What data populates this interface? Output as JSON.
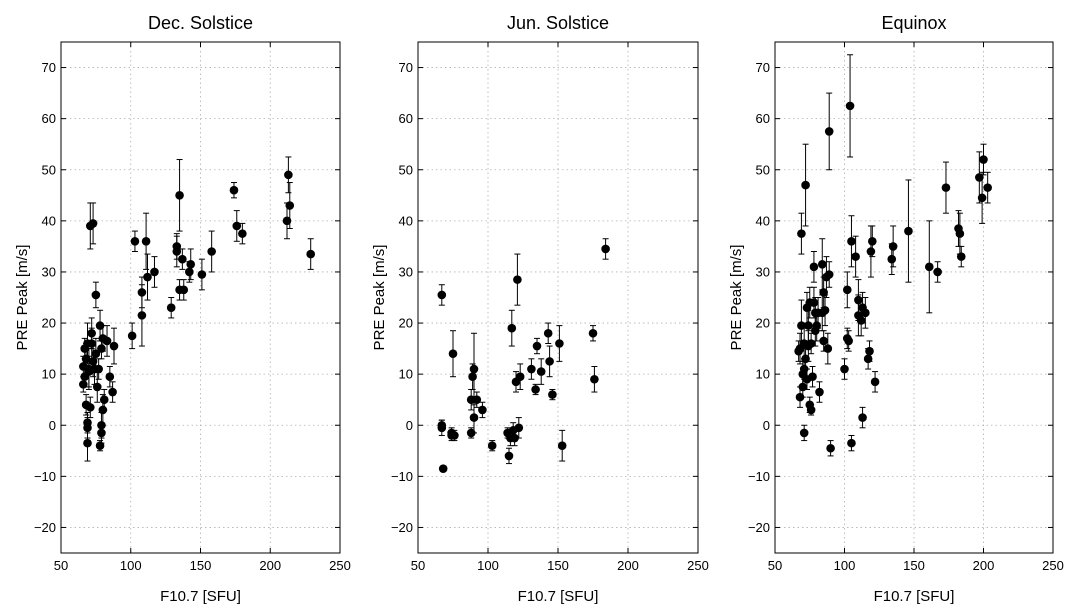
{
  "chart_data": [
    {
      "type": "scatter",
      "title": "Dec. Solstice",
      "xlabel": "F10.7 [SFU]",
      "ylabel": "PRE Peak [m/s]",
      "xlim": [
        50,
        250
      ],
      "ylim": [
        -25,
        75
      ],
      "xticks": [
        50,
        100,
        150,
        200,
        250
      ],
      "yticks": [
        -20,
        -10,
        0,
        10,
        20,
        30,
        40,
        50,
        60,
        70
      ],
      "grid": true,
      "points": [
        {
          "x": 66,
          "y": 8,
          "err": 1.5
        },
        {
          "x": 66,
          "y": 11.5,
          "err": 2
        },
        {
          "x": 67,
          "y": 9.5,
          "err": 2
        },
        {
          "x": 67,
          "y": 15,
          "err": 2
        },
        {
          "x": 68,
          "y": 13,
          "err": 3
        },
        {
          "x": 68,
          "y": 4,
          "err": 2
        },
        {
          "x": 69,
          "y": -0.5,
          "err": 2
        },
        {
          "x": 69,
          "y": 0.5,
          "err": 2
        },
        {
          "x": 69,
          "y": -3.5,
          "err": 3.5
        },
        {
          "x": 69,
          "y": 16,
          "err": 4
        },
        {
          "x": 70,
          "y": 10.5,
          "err": 3
        },
        {
          "x": 70,
          "y": 11,
          "err": 4
        },
        {
          "x": 71,
          "y": 39,
          "err": 4.5
        },
        {
          "x": 71,
          "y": 3.5,
          "err": 2
        },
        {
          "x": 72,
          "y": 18,
          "err": 3
        },
        {
          "x": 72,
          "y": 16,
          "err": 3
        },
        {
          "x": 73,
          "y": 39.5,
          "err": 4
        },
        {
          "x": 73,
          "y": 12.5,
          "err": 3
        },
        {
          "x": 74,
          "y": 11,
          "err": 3
        },
        {
          "x": 75,
          "y": 14,
          "err": 3
        },
        {
          "x": 75,
          "y": 25.5,
          "err": 2.5
        },
        {
          "x": 76,
          "y": 7.5,
          "err": 3
        },
        {
          "x": 77,
          "y": 11,
          "err": 2
        },
        {
          "x": 78,
          "y": -4,
          "err": 1
        },
        {
          "x": 78,
          "y": 19.5,
          "err": 3
        },
        {
          "x": 79,
          "y": -1.5,
          "err": 2
        },
        {
          "x": 79,
          "y": 15,
          "err": 2
        },
        {
          "x": 79,
          "y": 0,
          "err": 2.5
        },
        {
          "x": 80,
          "y": 17,
          "err": 2.5
        },
        {
          "x": 80,
          "y": 3,
          "err": 3
        },
        {
          "x": 81,
          "y": 5,
          "err": 2
        },
        {
          "x": 83,
          "y": 16.5,
          "err": 3
        },
        {
          "x": 85,
          "y": 9.5,
          "err": 2
        },
        {
          "x": 87,
          "y": 6.5,
          "err": 2
        },
        {
          "x": 88,
          "y": 15.5,
          "err": 3.5
        },
        {
          "x": 101,
          "y": 17.5,
          "err": 2.5
        },
        {
          "x": 103,
          "y": 36,
          "err": 2
        },
        {
          "x": 108,
          "y": 26,
          "err": 3
        },
        {
          "x": 108,
          "y": 21.5,
          "err": 6
        },
        {
          "x": 111,
          "y": 36,
          "err": 5.5
        },
        {
          "x": 112,
          "y": 29,
          "err": 4.5
        },
        {
          "x": 117,
          "y": 30,
          "err": 3
        },
        {
          "x": 129,
          "y": 23,
          "err": 2
        },
        {
          "x": 133,
          "y": 35,
          "err": 2.5
        },
        {
          "x": 133,
          "y": 34,
          "err": 3
        },
        {
          "x": 135,
          "y": 45,
          "err": 7
        },
        {
          "x": 135,
          "y": 26.5,
          "err": 2
        },
        {
          "x": 137,
          "y": 32.5,
          "err": 2
        },
        {
          "x": 138,
          "y": 26.5,
          "err": 2
        },
        {
          "x": 142,
          "y": 30,
          "err": 2
        },
        {
          "x": 143,
          "y": 31.5,
          "err": 3
        },
        {
          "x": 151,
          "y": 29.5,
          "err": 3
        },
        {
          "x": 158,
          "y": 34,
          "err": 4
        },
        {
          "x": 174,
          "y": 46,
          "err": 1.5
        },
        {
          "x": 176,
          "y": 39,
          "err": 3
        },
        {
          "x": 180,
          "y": 37.5,
          "err": 2
        },
        {
          "x": 212,
          "y": 40,
          "err": 3.5
        },
        {
          "x": 213,
          "y": 49,
          "err": 3.5
        },
        {
          "x": 214,
          "y": 43,
          "err": 4.5
        },
        {
          "x": 229,
          "y": 33.5,
          "err": 3
        }
      ]
    },
    {
      "type": "scatter",
      "title": "Jun. Solstice",
      "xlabel": "F10.7 [SFU]",
      "ylabel": "PRE Peak [m/s]",
      "xlim": [
        50,
        250
      ],
      "ylim": [
        -25,
        75
      ],
      "xticks": [
        50,
        100,
        150,
        200,
        250
      ],
      "yticks": [
        -20,
        -10,
        0,
        10,
        20,
        30,
        40,
        50,
        60,
        70
      ],
      "grid": true,
      "points": [
        {
          "x": 67,
          "y": 25.5,
          "err": 2
        },
        {
          "x": 67,
          "y": -0.5,
          "err": 1.5
        },
        {
          "x": 67,
          "y": 0,
          "err": 1
        },
        {
          "x": 68,
          "y": -8.5,
          "err": 0.5
        },
        {
          "x": 74,
          "y": -1.5,
          "err": 1
        },
        {
          "x": 74,
          "y": -2,
          "err": 1
        },
        {
          "x": 75,
          "y": 14,
          "err": 4.5
        },
        {
          "x": 76,
          "y": -2,
          "err": 1
        },
        {
          "x": 88,
          "y": 5,
          "err": 2
        },
        {
          "x": 88,
          "y": -1.5,
          "err": 1
        },
        {
          "x": 89,
          "y": 9.5,
          "err": 2.5
        },
        {
          "x": 90,
          "y": 11,
          "err": 7
        },
        {
          "x": 90,
          "y": 1.5,
          "err": 3
        },
        {
          "x": 92,
          "y": 5,
          "err": 1.5
        },
        {
          "x": 96,
          "y": 3,
          "err": 1.5
        },
        {
          "x": 103,
          "y": -4,
          "err": 1
        },
        {
          "x": 114,
          "y": -1.5,
          "err": 1
        },
        {
          "x": 115,
          "y": -6,
          "err": 1.5
        },
        {
          "x": 116,
          "y": -2.5,
          "err": 1.5
        },
        {
          "x": 117,
          "y": 19,
          "err": 3.5
        },
        {
          "x": 118,
          "y": -1,
          "err": 1.5
        },
        {
          "x": 119,
          "y": -2.5,
          "err": 1.5
        },
        {
          "x": 120,
          "y": 8.5,
          "err": 2
        },
        {
          "x": 121,
          "y": 28.5,
          "err": 5
        },
        {
          "x": 122,
          "y": -0.5,
          "err": 2
        },
        {
          "x": 123,
          "y": 9.5,
          "err": 2.5
        },
        {
          "x": 131,
          "y": 11,
          "err": 2
        },
        {
          "x": 134,
          "y": 7,
          "err": 1
        },
        {
          "x": 135,
          "y": 15.5,
          "err": 1.5
        },
        {
          "x": 138,
          "y": 10.5,
          "err": 2.5
        },
        {
          "x": 143,
          "y": 18,
          "err": 2
        },
        {
          "x": 144,
          "y": 12.5,
          "err": 3
        },
        {
          "x": 146,
          "y": 6,
          "err": 1
        },
        {
          "x": 151,
          "y": 16,
          "err": 3.5
        },
        {
          "x": 153,
          "y": -4,
          "err": 3
        },
        {
          "x": 175,
          "y": 18,
          "err": 1.5
        },
        {
          "x": 176,
          "y": 9,
          "err": 2.5
        },
        {
          "x": 184,
          "y": 34.5,
          "err": 2
        }
      ]
    },
    {
      "type": "scatter",
      "title": "Equinox",
      "xlabel": "F10.7 [SFU]",
      "ylabel": "PRE Peak [m/s]",
      "xlim": [
        50,
        250
      ],
      "ylim": [
        -25,
        75
      ],
      "xticks": [
        50,
        100,
        150,
        200,
        250
      ],
      "yticks": [
        -20,
        -10,
        0,
        10,
        20,
        30,
        40,
        50,
        60,
        70
      ],
      "grid": true,
      "points": [
        {
          "x": 67,
          "y": 14.5,
          "err": 2
        },
        {
          "x": 68,
          "y": 15,
          "err": 3
        },
        {
          "x": 68,
          "y": 5.5,
          "err": 2
        },
        {
          "x": 69,
          "y": 19.5,
          "err": 5
        },
        {
          "x": 69,
          "y": 37.5,
          "err": 4
        },
        {
          "x": 70,
          "y": 7.5,
          "err": 2
        },
        {
          "x": 70,
          "y": 10,
          "err": 2.5
        },
        {
          "x": 71,
          "y": 16,
          "err": 3
        },
        {
          "x": 71,
          "y": 11,
          "err": 2
        },
        {
          "x": 71,
          "y": -1.5,
          "err": 1.5
        },
        {
          "x": 72,
          "y": 47,
          "err": 8
        },
        {
          "x": 72,
          "y": 13,
          "err": 2
        },
        {
          "x": 73,
          "y": 9,
          "err": 2
        },
        {
          "x": 73,
          "y": 23,
          "err": 3
        },
        {
          "x": 74,
          "y": 15.5,
          "err": 3
        },
        {
          "x": 74,
          "y": 19.5,
          "err": 3
        },
        {
          "x": 75,
          "y": 4,
          "err": 1.5
        },
        {
          "x": 75,
          "y": 24,
          "err": 3
        },
        {
          "x": 76,
          "y": 16,
          "err": 2
        },
        {
          "x": 76,
          "y": 3,
          "err": 1
        },
        {
          "x": 77,
          "y": 9.5,
          "err": 2
        },
        {
          "x": 78,
          "y": 31,
          "err": 3
        },
        {
          "x": 78,
          "y": 24,
          "err": 3
        },
        {
          "x": 79,
          "y": 22,
          "err": 3
        },
        {
          "x": 79,
          "y": 18.5,
          "err": 3
        },
        {
          "x": 80,
          "y": 19.5,
          "err": 3
        },
        {
          "x": 81,
          "y": 22,
          "err": 3
        },
        {
          "x": 82,
          "y": 6.5,
          "err": 2
        },
        {
          "x": 84,
          "y": 31.5,
          "err": 5
        },
        {
          "x": 84,
          "y": 22,
          "err": 3.5
        },
        {
          "x": 85,
          "y": 26,
          "err": 3
        },
        {
          "x": 85,
          "y": 16.5,
          "err": 2
        },
        {
          "x": 86,
          "y": 22.5,
          "err": 3
        },
        {
          "x": 87,
          "y": 29,
          "err": 4
        },
        {
          "x": 88,
          "y": 15,
          "err": 3
        },
        {
          "x": 89,
          "y": 29.5,
          "err": 2.5
        },
        {
          "x": 89,
          "y": 57.5,
          "err": 7.5
        },
        {
          "x": 90,
          "y": -4.5,
          "err": 1.5
        },
        {
          "x": 100,
          "y": 11,
          "err": 2
        },
        {
          "x": 102,
          "y": 26.5,
          "err": 3.5
        },
        {
          "x": 102,
          "y": 17,
          "err": 2
        },
        {
          "x": 103,
          "y": 16.5,
          "err": 2
        },
        {
          "x": 104,
          "y": 62.5,
          "err": 10
        },
        {
          "x": 105,
          "y": 36,
          "err": 5
        },
        {
          "x": 105,
          "y": -3.5,
          "err": 1.5
        },
        {
          "x": 108,
          "y": 33,
          "err": 4
        },
        {
          "x": 110,
          "y": 21.5,
          "err": 4
        },
        {
          "x": 110,
          "y": 24.5,
          "err": 4
        },
        {
          "x": 112,
          "y": 20.5,
          "err": 3
        },
        {
          "x": 113,
          "y": 1.5,
          "err": 2
        },
        {
          "x": 113,
          "y": 23,
          "err": 3
        },
        {
          "x": 115,
          "y": 22,
          "err": 3
        },
        {
          "x": 117,
          "y": 13,
          "err": 2
        },
        {
          "x": 118,
          "y": 14.5,
          "err": 2
        },
        {
          "x": 119,
          "y": 34,
          "err": 5
        },
        {
          "x": 120,
          "y": 36,
          "err": 3
        },
        {
          "x": 122,
          "y": 8.5,
          "err": 2
        },
        {
          "x": 134,
          "y": 32.5,
          "err": 3
        },
        {
          "x": 135,
          "y": 35,
          "err": 4
        },
        {
          "x": 146,
          "y": 38,
          "err": 10
        },
        {
          "x": 161,
          "y": 31,
          "err": 9
        },
        {
          "x": 167,
          "y": 30,
          "err": 2
        },
        {
          "x": 173,
          "y": 46.5,
          "err": 5
        },
        {
          "x": 182,
          "y": 38.5,
          "err": 3.5
        },
        {
          "x": 183,
          "y": 37.5,
          "err": 4
        },
        {
          "x": 184,
          "y": 33,
          "err": 2
        },
        {
          "x": 197,
          "y": 48.5,
          "err": 5
        },
        {
          "x": 199,
          "y": 44.5,
          "err": 5
        },
        {
          "x": 200,
          "y": 52,
          "err": 3
        },
        {
          "x": 203,
          "y": 46.5,
          "err": 3
        }
      ]
    }
  ]
}
